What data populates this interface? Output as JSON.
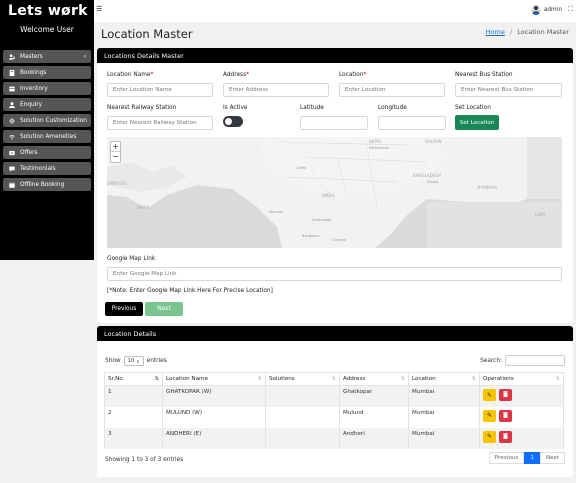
{
  "brand": {
    "name": "Lets wørk",
    "welcome": "Welcome User"
  },
  "sidebar": {
    "items": [
      {
        "label": "Masters",
        "icon": "users-cog-icon",
        "has_chevron": true
      },
      {
        "label": "Bookings",
        "icon": "bookmark-icon"
      },
      {
        "label": "Inventory",
        "icon": "box-icon"
      },
      {
        "label": "Enquiry",
        "icon": "user-icon"
      },
      {
        "label": "Solution Customization",
        "icon": "gear-icon"
      },
      {
        "label": "Solution Ameneties",
        "icon": "wifi-icon"
      },
      {
        "label": "Offers",
        "icon": "ticket-icon"
      },
      {
        "label": "Testimonials",
        "icon": "comment-icon"
      },
      {
        "label": "Offline Booking",
        "icon": "calendar-icon"
      }
    ]
  },
  "topbar": {
    "user": "admin"
  },
  "page": {
    "title": "Location Master"
  },
  "breadcrumb": {
    "home": "Home",
    "separator": "/",
    "current": "Location Master"
  },
  "form": {
    "header": "Locations Details Master",
    "location_name": {
      "label": "Location Name",
      "required": "*",
      "placeholder": "Enter Location Name"
    },
    "address": {
      "label": "Address",
      "required": "*",
      "placeholder": "Enter Address"
    },
    "location": {
      "label": "Location",
      "required": "*",
      "placeholder": "Enter Location"
    },
    "nearest_bus": {
      "label": "Nearest Bus Station",
      "placeholder": "Enter Nearest Bus Station"
    },
    "nearest_rail": {
      "label": "Nearest Railway Station",
      "placeholder": "Enter Nearest Railway Station"
    },
    "is_active": {
      "label": "Is Active",
      "value": false
    },
    "latitude": {
      "label": "Latitude",
      "value": ""
    },
    "longitude": {
      "label": "Longitude",
      "value": ""
    },
    "set_location": {
      "label": "Set Location",
      "button": "Set Location"
    },
    "map": {
      "zoom_in": "+",
      "zoom_out": "−",
      "labels": [
        "NEPAL",
        "Kathmandu",
        "BHUTAN",
        "BANGLADESH",
        "Dhaka",
        "INDIA",
        "LAOS",
        "MYANMAR",
        "EMIRATES",
        "OMAN",
        "Delhi",
        "Hyderabad",
        "Bangalore",
        "Chennai",
        "Mumbai"
      ]
    },
    "map_link": {
      "label": "Google Map Link",
      "placeholder": "Enter Google Map Link"
    },
    "note": "[*Note: Enter Google Map Link Here For Precise Location]",
    "previous": "Previous",
    "next": "Next"
  },
  "table": {
    "header": "Location Details",
    "show_prefix": "Show",
    "show_value": "10",
    "show_suffix": "entries",
    "search_label": "Search:",
    "columns": [
      "Sr.No.",
      "Location Name",
      "Solutions",
      "Address",
      "Location",
      "Operations"
    ],
    "rows": [
      {
        "sr": "1",
        "name": "GHATKOPAR (W)",
        "solutions": "",
        "address": "Ghatkopar",
        "location": "Mumbai"
      },
      {
        "sr": "2",
        "name": "MULUND (W)",
        "solutions": "",
        "address": "Mulund",
        "location": "Mumbai"
      },
      {
        "sr": "3",
        "name": "ANDHERI (E)",
        "solutions": "",
        "address": "Andheri",
        "location": "Mumbai"
      }
    ],
    "info": "Showing 1 to 3 of 3 entries",
    "pager": {
      "previous": "Previous",
      "page": "1",
      "next": "Next"
    }
  },
  "colors": {
    "sidebar": "#000000",
    "nav_item": "#555555",
    "primary": "#0d6efd",
    "success": "#198754",
    "warning": "#f7c400",
    "danger": "#dc3545"
  }
}
